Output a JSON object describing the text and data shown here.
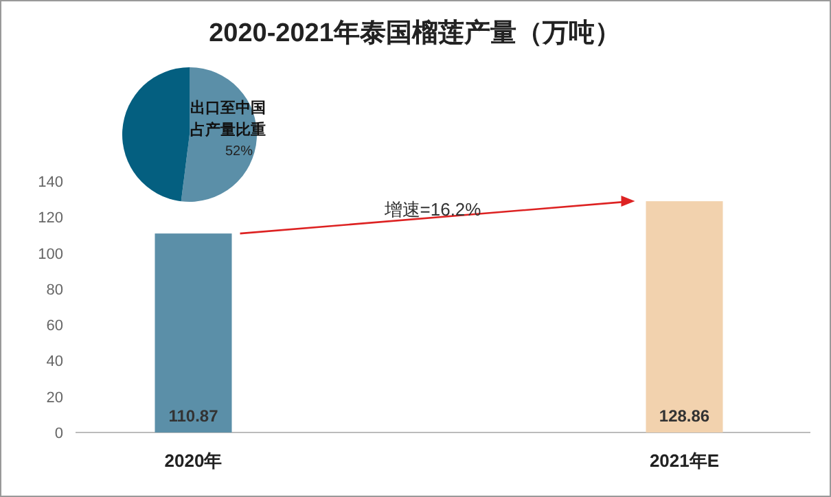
{
  "chart_data": [
    {
      "type": "bar",
      "title": "2020-2021年泰国榴莲产量（万吨）",
      "categories": [
        "2020年",
        "2021年E"
      ],
      "values": [
        110.87,
        128.86
      ],
      "colors": [
        "#5b8fa8",
        "#f2d2ae"
      ],
      "ylim": [
        0,
        140
      ],
      "yticks": [
        0,
        20,
        40,
        60,
        80,
        100,
        120,
        140
      ],
      "data_labels": true,
      "grid": false,
      "annotations": [
        "增速=16.2%"
      ]
    },
    {
      "type": "pie",
      "categories": [
        "出口至中国占产量比重",
        null
      ],
      "values": [
        52,
        48
      ],
      "colors": [
        "#5b8fa8",
        "#045f80"
      ],
      "value_labels": [
        "52%",
        null
      ]
    }
  ]
}
